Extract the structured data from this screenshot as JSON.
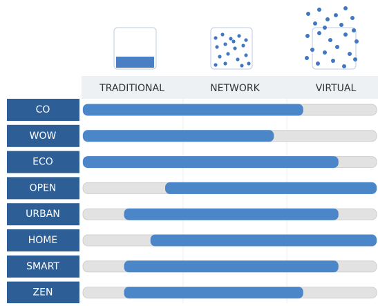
{
  "chart_data": {
    "type": "range-bar",
    "columns": [
      "TRADITIONAL",
      "NETWORK",
      "VIRTUAL"
    ],
    "categories": [
      "CO",
      "WOW",
      "ECO",
      "OPEN",
      "URBAN",
      "HOME",
      "SMART",
      "ZEN"
    ],
    "values": [
      [
        0,
        75
      ],
      [
        0,
        65
      ],
      [
        0,
        87
      ],
      [
        28,
        100
      ],
      [
        14,
        87
      ],
      [
        23,
        100
      ],
      [
        14,
        87
      ],
      [
        14,
        75
      ]
    ],
    "xlim": [
      0,
      100
    ],
    "color": "#4a86c8",
    "track_color": "#e2e2e2",
    "label_color": "#2d5f96"
  }
}
